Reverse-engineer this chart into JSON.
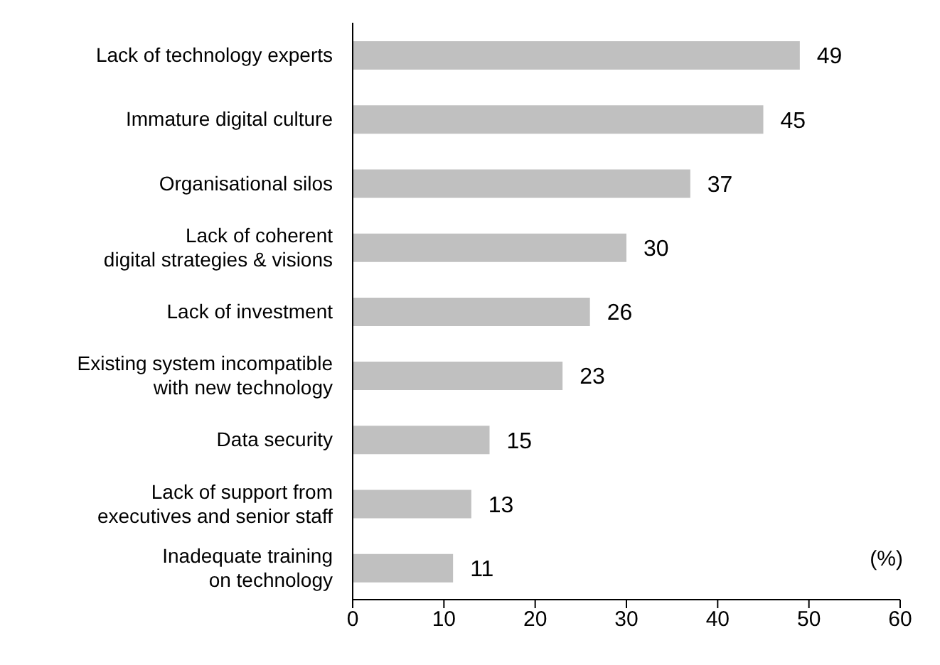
{
  "chart_data": {
    "type": "bar",
    "orientation": "horizontal",
    "categories": [
      "Lack of technology experts",
      "Immature digital culture",
      "Organisational silos",
      "Lack of coherent\ndigital strategies & visions",
      "Lack of investment",
      "Existing system incompatible\nwith new technology",
      "Data security",
      "Lack of support from\nexecutives and senior staff",
      "Inadequate training\non technology"
    ],
    "values": [
      49,
      45,
      37,
      30,
      26,
      23,
      15,
      13,
      11
    ],
    "color": "#c0c0c0",
    "xlim": [
      0,
      60
    ],
    "xticks": [
      0,
      10,
      20,
      30,
      40,
      50,
      60
    ],
    "data_labels": true,
    "grid": false,
    "annotations": [
      "(%)"
    ]
  }
}
